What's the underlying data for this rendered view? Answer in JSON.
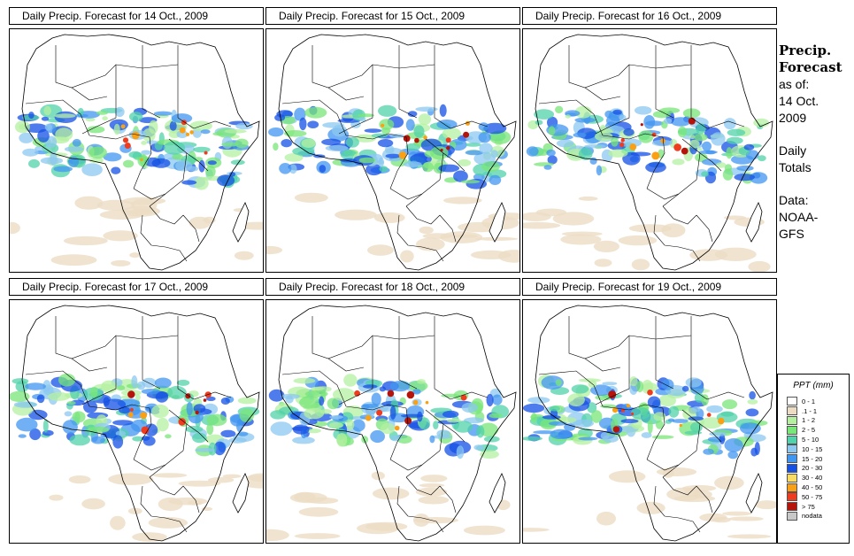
{
  "panels": [
    {
      "title": "Daily Precip. Forecast for  14 Oct., 2009"
    },
    {
      "title": "Daily Precip. Forecast for  15 Oct., 2009"
    },
    {
      "title": "Daily Precip. Forecast for  16 Oct., 2009"
    },
    {
      "title": "Daily Precip. Forecast for  17 Oct., 2009"
    },
    {
      "title": "Daily Precip. Forecast for  18 Oct., 2009"
    },
    {
      "title": "Daily Precip. Forecast for  19 Oct., 2009"
    }
  ],
  "side": {
    "heading1": "Precip.",
    "heading2": "Forecast",
    "asof": "as of:",
    "date1": "14 Oct.",
    "date2": "2009",
    "daily": "Daily",
    "totals": "Totals",
    "data_label": "Data:",
    "source1": "NOAA-",
    "source2": "GFS"
  },
  "legend": {
    "title": "PPT (mm)",
    "items": [
      {
        "label": "0 - 1",
        "color": "#ffffff"
      },
      {
        "label": ".1 - 1",
        "color": "#ecdcc4"
      },
      {
        "label": "1 - 2",
        "color": "#b4f0a0"
      },
      {
        "label": "2 - 5",
        "color": "#78e678"
      },
      {
        "label": "5 - 10",
        "color": "#50d2aa"
      },
      {
        "label": "10 - 15",
        "color": "#8cc8f0"
      },
      {
        "label": "15 - 20",
        "color": "#4196f0"
      },
      {
        "label": "20 - 30",
        "color": "#1450e6"
      },
      {
        "label": "30 - 40",
        "color": "#fadc64"
      },
      {
        "label": "40 - 50",
        "color": "#faa014"
      },
      {
        "label": "50 - 75",
        "color": "#f03c1e"
      },
      {
        "label": "> 75",
        "color": "#b4140a"
      },
      {
        "label": "nodata",
        "color": "#c8c8c8"
      }
    ]
  },
  "colors": {
    "land": "#ffffff",
    "border": "#000000",
    "bg": "#ffffff"
  }
}
